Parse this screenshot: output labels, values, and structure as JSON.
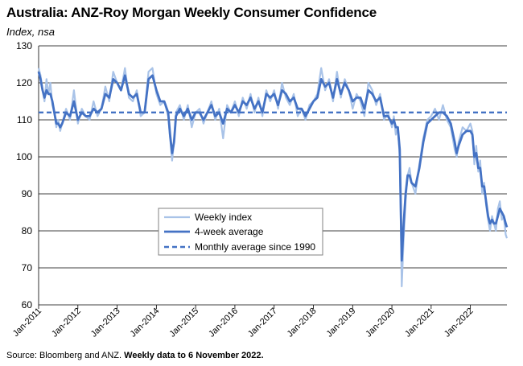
{
  "title": "Australia: ANZ-Roy Morgan Weekly Consumer Confidence",
  "subtitle": "Index, nsa",
  "source_prefix": "Source: Bloomberg and ANZ. ",
  "source_bold": "Weekly data to 6 November 2022.",
  "colors": {
    "weekly": "#a9c3e8",
    "avg4": "#4472c4",
    "monthly_avg": "#4472c4",
    "grid": "#000000"
  },
  "chart_data": {
    "type": "line",
    "title": "Australia: ANZ-Roy Morgan Weekly Consumer Confidence",
    "ylabel": "Index, nsa",
    "ylim": [
      60,
      130
    ],
    "yticks": [
      60,
      70,
      80,
      90,
      100,
      110,
      120,
      130
    ],
    "xlim": [
      2011.0,
      2022.93
    ],
    "xticks": [
      {
        "label": "Jan-2011",
        "x": 2011
      },
      {
        "label": "Jan-2012",
        "x": 2012
      },
      {
        "label": "Jan-2013",
        "x": 2013
      },
      {
        "label": "Jan-2014",
        "x": 2014
      },
      {
        "label": "Jan-2015",
        "x": 2015
      },
      {
        "label": "Jan-2016",
        "x": 2016
      },
      {
        "label": "Jan-2017",
        "x": 2017
      },
      {
        "label": "Jan-2018",
        "x": 2018
      },
      {
        "label": "Jan-2019",
        "x": 2019
      },
      {
        "label": "Jan-2020",
        "x": 2020
      },
      {
        "label": "Jan-2021",
        "x": 2021
      },
      {
        "label": "Jan-2022",
        "x": 2022
      }
    ],
    "grid": "horizontal",
    "legend_position": "center-left",
    "series": [
      {
        "name": "Weekly index",
        "x": [
          2011.0,
          2011.05,
          2011.1,
          2011.15,
          2011.2,
          2011.25,
          2011.3,
          2011.35,
          2011.4,
          2011.45,
          2011.5,
          2011.55,
          2011.6,
          2011.7,
          2011.8,
          2011.9,
          2012.0,
          2012.1,
          2012.2,
          2012.3,
          2012.4,
          2012.5,
          2012.6,
          2012.7,
          2012.8,
          2012.9,
          2013.0,
          2013.1,
          2013.2,
          2013.3,
          2013.4,
          2013.5,
          2013.6,
          2013.7,
          2013.8,
          2013.9,
          2014.0,
          2014.1,
          2014.2,
          2014.3,
          2014.35,
          2014.4,
          2014.45,
          2014.5,
          2014.6,
          2014.7,
          2014.8,
          2014.9,
          2015.0,
          2015.1,
          2015.2,
          2015.3,
          2015.4,
          2015.5,
          2015.6,
          2015.7,
          2015.8,
          2015.9,
          2016.0,
          2016.1,
          2016.2,
          2016.3,
          2016.4,
          2016.5,
          2016.6,
          2016.7,
          2016.8,
          2016.9,
          2017.0,
          2017.1,
          2017.2,
          2017.3,
          2017.4,
          2017.5,
          2017.6,
          2017.7,
          2017.8,
          2017.9,
          2018.0,
          2018.1,
          2018.2,
          2018.3,
          2018.4,
          2018.5,
          2018.6,
          2018.7,
          2018.8,
          2018.9,
          2019.0,
          2019.1,
          2019.2,
          2019.3,
          2019.4,
          2019.5,
          2019.6,
          2019.7,
          2019.8,
          2019.9,
          2020.0,
          2020.05,
          2020.1,
          2020.15,
          2020.2,
          2020.25,
          2020.3,
          2020.35,
          2020.4,
          2020.45,
          2020.5,
          2020.6,
          2020.7,
          2020.8,
          2020.9,
          2021.0,
          2021.1,
          2021.2,
          2021.3,
          2021.4,
          2021.5,
          2021.6,
          2021.65,
          2021.7,
          2021.8,
          2021.9,
          2022.0,
          2022.05,
          2022.1,
          2022.15,
          2022.2,
          2022.25,
          2022.3,
          2022.35,
          2022.4,
          2022.45,
          2022.5,
          2022.55,
          2022.6,
          2022.65,
          2022.7,
          2022.75,
          2022.8,
          2022.85,
          2022.9,
          2022.93
        ],
        "y": [
          124,
          122,
          118,
          115,
          121,
          117,
          120,
          114,
          112,
          108,
          110,
          107,
          109,
          113,
          110,
          118,
          109,
          113,
          111,
          110,
          115,
          111,
          113,
          119,
          115,
          123,
          120,
          118,
          124,
          116,
          115,
          118,
          111,
          112,
          123,
          124,
          117,
          114,
          115,
          111,
          105,
          99,
          104,
          112,
          114,
          110,
          114,
          108,
          112,
          113,
          109,
          112,
          115,
          110,
          113,
          105,
          114,
          112,
          115,
          111,
          116,
          113,
          117,
          112,
          116,
          111,
          118,
          115,
          118,
          113,
          120,
          116,
          114,
          117,
          111,
          113,
          110,
          114,
          115,
          117,
          124,
          118,
          121,
          115,
          123,
          116,
          121,
          118,
          113,
          117,
          115,
          111,
          120,
          118,
          114,
          117,
          110,
          112,
          108,
          111,
          106,
          108,
          100,
          65,
          78,
          88,
          95,
          97,
          93,
          90,
          98,
          105,
          110,
          111,
          113,
          110,
          114,
          110,
          108,
          102,
          100,
          104,
          108,
          107,
          109,
          107,
          98,
          103,
          96,
          99,
          90,
          93,
          87,
          83,
          80,
          84,
          82,
          80,
          86,
          88,
          83,
          84,
          79,
          78
        ]
      },
      {
        "name": "4-week average",
        "x": [
          2011.0,
          2011.05,
          2011.1,
          2011.15,
          2011.2,
          2011.25,
          2011.3,
          2011.35,
          2011.4,
          2011.45,
          2011.5,
          2011.55,
          2011.6,
          2011.7,
          2011.8,
          2011.9,
          2012.0,
          2012.1,
          2012.2,
          2012.3,
          2012.4,
          2012.5,
          2012.6,
          2012.7,
          2012.8,
          2012.9,
          2013.0,
          2013.1,
          2013.2,
          2013.3,
          2013.4,
          2013.5,
          2013.6,
          2013.7,
          2013.8,
          2013.9,
          2014.0,
          2014.1,
          2014.2,
          2014.3,
          2014.35,
          2014.4,
          2014.45,
          2014.5,
          2014.6,
          2014.7,
          2014.8,
          2014.9,
          2015.0,
          2015.1,
          2015.2,
          2015.3,
          2015.4,
          2015.5,
          2015.6,
          2015.7,
          2015.8,
          2015.9,
          2016.0,
          2016.1,
          2016.2,
          2016.3,
          2016.4,
          2016.5,
          2016.6,
          2016.7,
          2016.8,
          2016.9,
          2017.0,
          2017.1,
          2017.2,
          2017.3,
          2017.4,
          2017.5,
          2017.6,
          2017.7,
          2017.8,
          2017.9,
          2018.0,
          2018.1,
          2018.2,
          2018.3,
          2018.4,
          2018.5,
          2018.6,
          2018.7,
          2018.8,
          2018.9,
          2019.0,
          2019.1,
          2019.2,
          2019.3,
          2019.4,
          2019.5,
          2019.6,
          2019.7,
          2019.8,
          2019.9,
          2020.0,
          2020.05,
          2020.1,
          2020.15,
          2020.2,
          2020.25,
          2020.3,
          2020.35,
          2020.4,
          2020.45,
          2020.5,
          2020.6,
          2020.7,
          2020.8,
          2020.9,
          2021.0,
          2021.1,
          2021.2,
          2021.3,
          2021.4,
          2021.5,
          2021.6,
          2021.65,
          2021.7,
          2021.8,
          2021.9,
          2022.0,
          2022.05,
          2022.1,
          2022.15,
          2022.2,
          2022.25,
          2022.3,
          2022.35,
          2022.4,
          2022.45,
          2022.5,
          2022.55,
          2022.6,
          2022.65,
          2022.7,
          2022.75,
          2022.8,
          2022.85,
          2022.9,
          2022.93
        ],
        "y": [
          123,
          121,
          118,
          116,
          118,
          117,
          117,
          115,
          112,
          109,
          109,
          108,
          109,
          112,
          111,
          115,
          110,
          112,
          111,
          111,
          113,
          112,
          113,
          117,
          116,
          121,
          120,
          118,
          122,
          117,
          116,
          117,
          112,
          112,
          121,
          122,
          118,
          115,
          115,
          112,
          106,
          101,
          104,
          111,
          113,
          111,
          113,
          110,
          112,
          112,
          110,
          112,
          114,
          111,
          112,
          109,
          113,
          112,
          114,
          112,
          115,
          114,
          116,
          113,
          115,
          112,
          117,
          116,
          117,
          114,
          118,
          117,
          115,
          116,
          113,
          113,
          111,
          113,
          115,
          116,
          121,
          119,
          120,
          116,
          121,
          117,
          120,
          118,
          115,
          116,
          116,
          113,
          118,
          117,
          115,
          116,
          111,
          111,
          109,
          110,
          108,
          108,
          102,
          72,
          82,
          90,
          95,
          95,
          93,
          92,
          97,
          104,
          109,
          110,
          111,
          112,
          112,
          111,
          109,
          104,
          101,
          103,
          106,
          107,
          107,
          106,
          100,
          101,
          97,
          97,
          92,
          92,
          88,
          84,
          82,
          83,
          82,
          82,
          84,
          86,
          85,
          84,
          82,
          81
        ]
      },
      {
        "name": "Monthly average since 1990",
        "x": [
          2011.0,
          2022.93
        ],
        "y": [
          112,
          112
        ]
      }
    ]
  }
}
